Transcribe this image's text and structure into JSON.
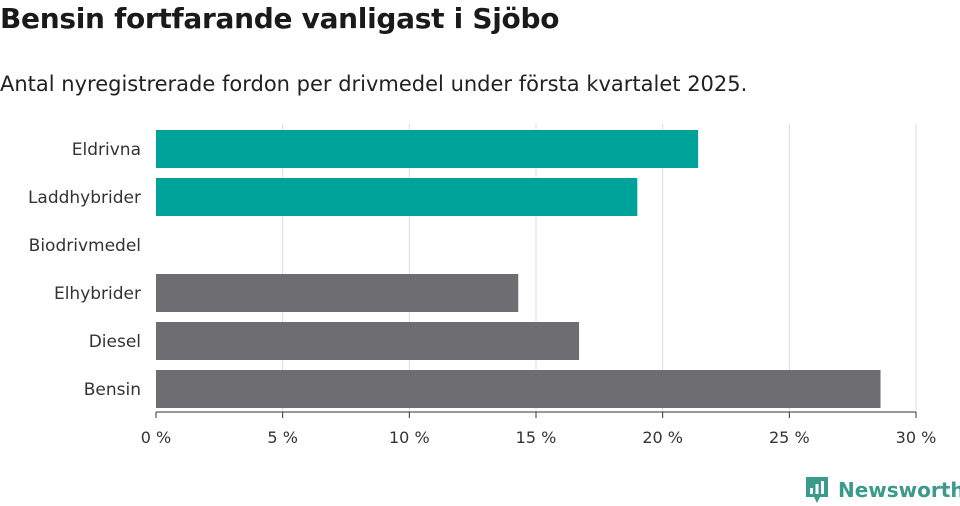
{
  "chart_data": {
    "type": "bar",
    "orientation": "horizontal",
    "title": "Bensin fortfarande vanligast i Sjöbo",
    "subtitle": "Antal nyregistrerade fordon per drivmedel under första kvartalet 2025.",
    "categories": [
      "Eldrivna",
      "Laddhybrider",
      "Biodrivmedel",
      "Elhybrider",
      "Diesel",
      "Bensin"
    ],
    "values": [
      21.4,
      19.0,
      0,
      14.3,
      16.7,
      28.6
    ],
    "bar_colors": [
      "#00a39a",
      "#00a39a",
      "#00a39a",
      "#6e6d72",
      "#6e6d72",
      "#6e6d72"
    ],
    "xlim": [
      0,
      30
    ],
    "xticks": [
      0,
      5,
      10,
      15,
      20,
      25,
      30
    ],
    "xtick_labels": [
      "0 %",
      "5 %",
      "10 %",
      "15 %",
      "20 %",
      "25 %",
      "30 %"
    ],
    "xlabel": "",
    "ylabel": "",
    "grid": true,
    "legend": false
  },
  "brand": {
    "name": "Newsworthy",
    "icon": "newsworthy-logo-icon",
    "color": "#3a9a8c"
  }
}
